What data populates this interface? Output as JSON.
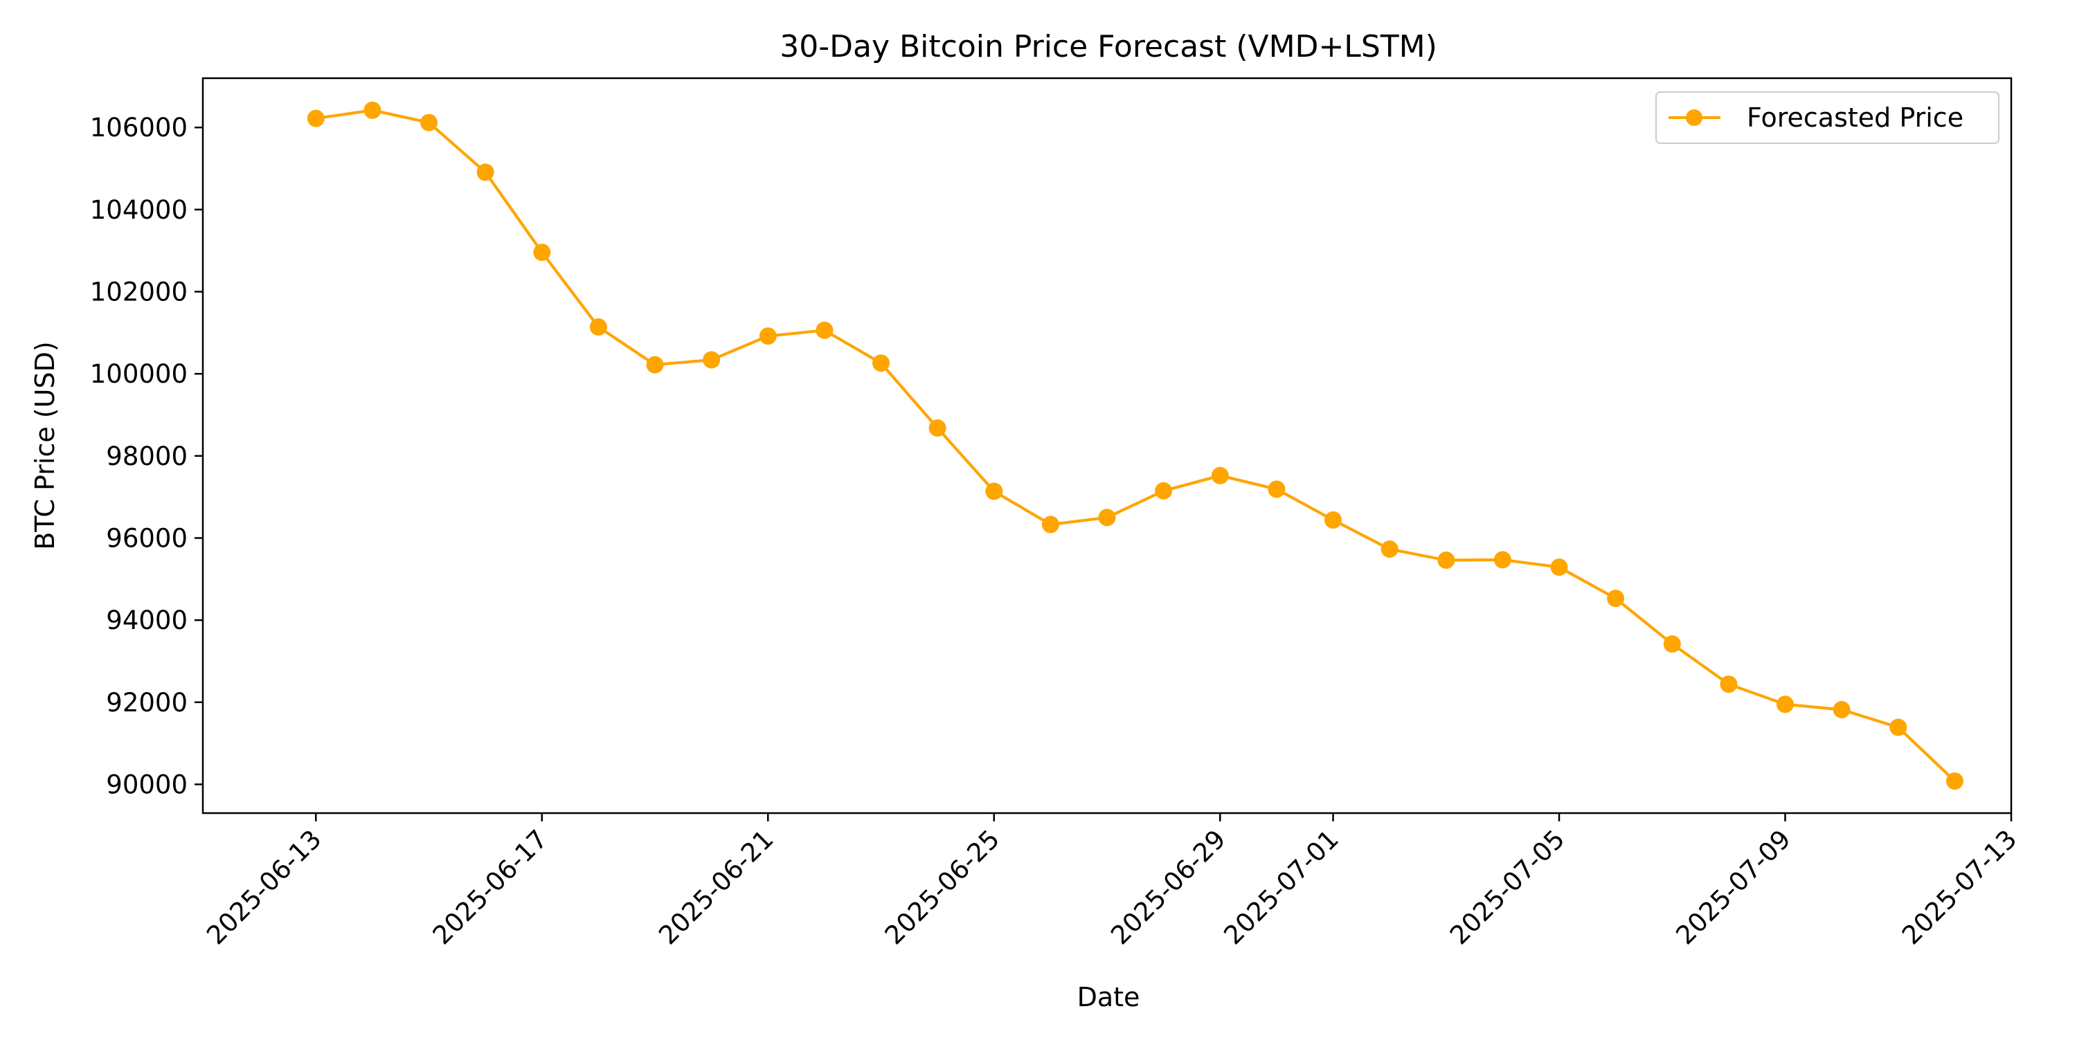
{
  "chart_data": {
    "type": "line",
    "title": "30-Day Bitcoin Price Forecast (VMD+LSTM)",
    "xlabel": "Date",
    "ylabel": "BTC Price (USD)",
    "x_type": "date",
    "xlim": [
      "2025-06-11",
      "2025-07-13"
    ],
    "ylim": [
      89300,
      107200
    ],
    "x_ticks": [
      "2025-06-13",
      "2025-06-17",
      "2025-06-21",
      "2025-06-25",
      "2025-06-29",
      "2025-07-01",
      "2025-07-05",
      "2025-07-09",
      "2025-07-13"
    ],
    "y_ticks": [
      90000,
      92000,
      94000,
      96000,
      98000,
      100000,
      102000,
      104000,
      106000
    ],
    "grid": false,
    "legend": {
      "position": "top-right"
    },
    "color": "#FFA500",
    "series": [
      {
        "name": "Forecasted Price",
        "x": [
          "2025-06-13",
          "2025-06-14",
          "2025-06-15",
          "2025-06-16",
          "2025-06-17",
          "2025-06-18",
          "2025-06-19",
          "2025-06-20",
          "2025-06-21",
          "2025-06-22",
          "2025-06-23",
          "2025-06-24",
          "2025-06-25",
          "2025-06-26",
          "2025-06-27",
          "2025-06-28",
          "2025-06-29",
          "2025-06-30",
          "2025-07-01",
          "2025-07-02",
          "2025-07-03",
          "2025-07-04",
          "2025-07-05",
          "2025-07-06",
          "2025-07-07",
          "2025-07-08",
          "2025-07-09",
          "2025-07-10",
          "2025-07-11",
          "2025-07-12"
        ],
        "values": [
          106220,
          106420,
          106120,
          104910,
          102960,
          101140,
          100220,
          100340,
          100920,
          101060,
          100260,
          98680,
          97140,
          96330,
          96500,
          97150,
          97520,
          97190,
          96440,
          95730,
          95460,
          95470,
          95290,
          94530,
          93420,
          92440,
          91950,
          91820,
          91390,
          90080
        ]
      }
    ]
  }
}
